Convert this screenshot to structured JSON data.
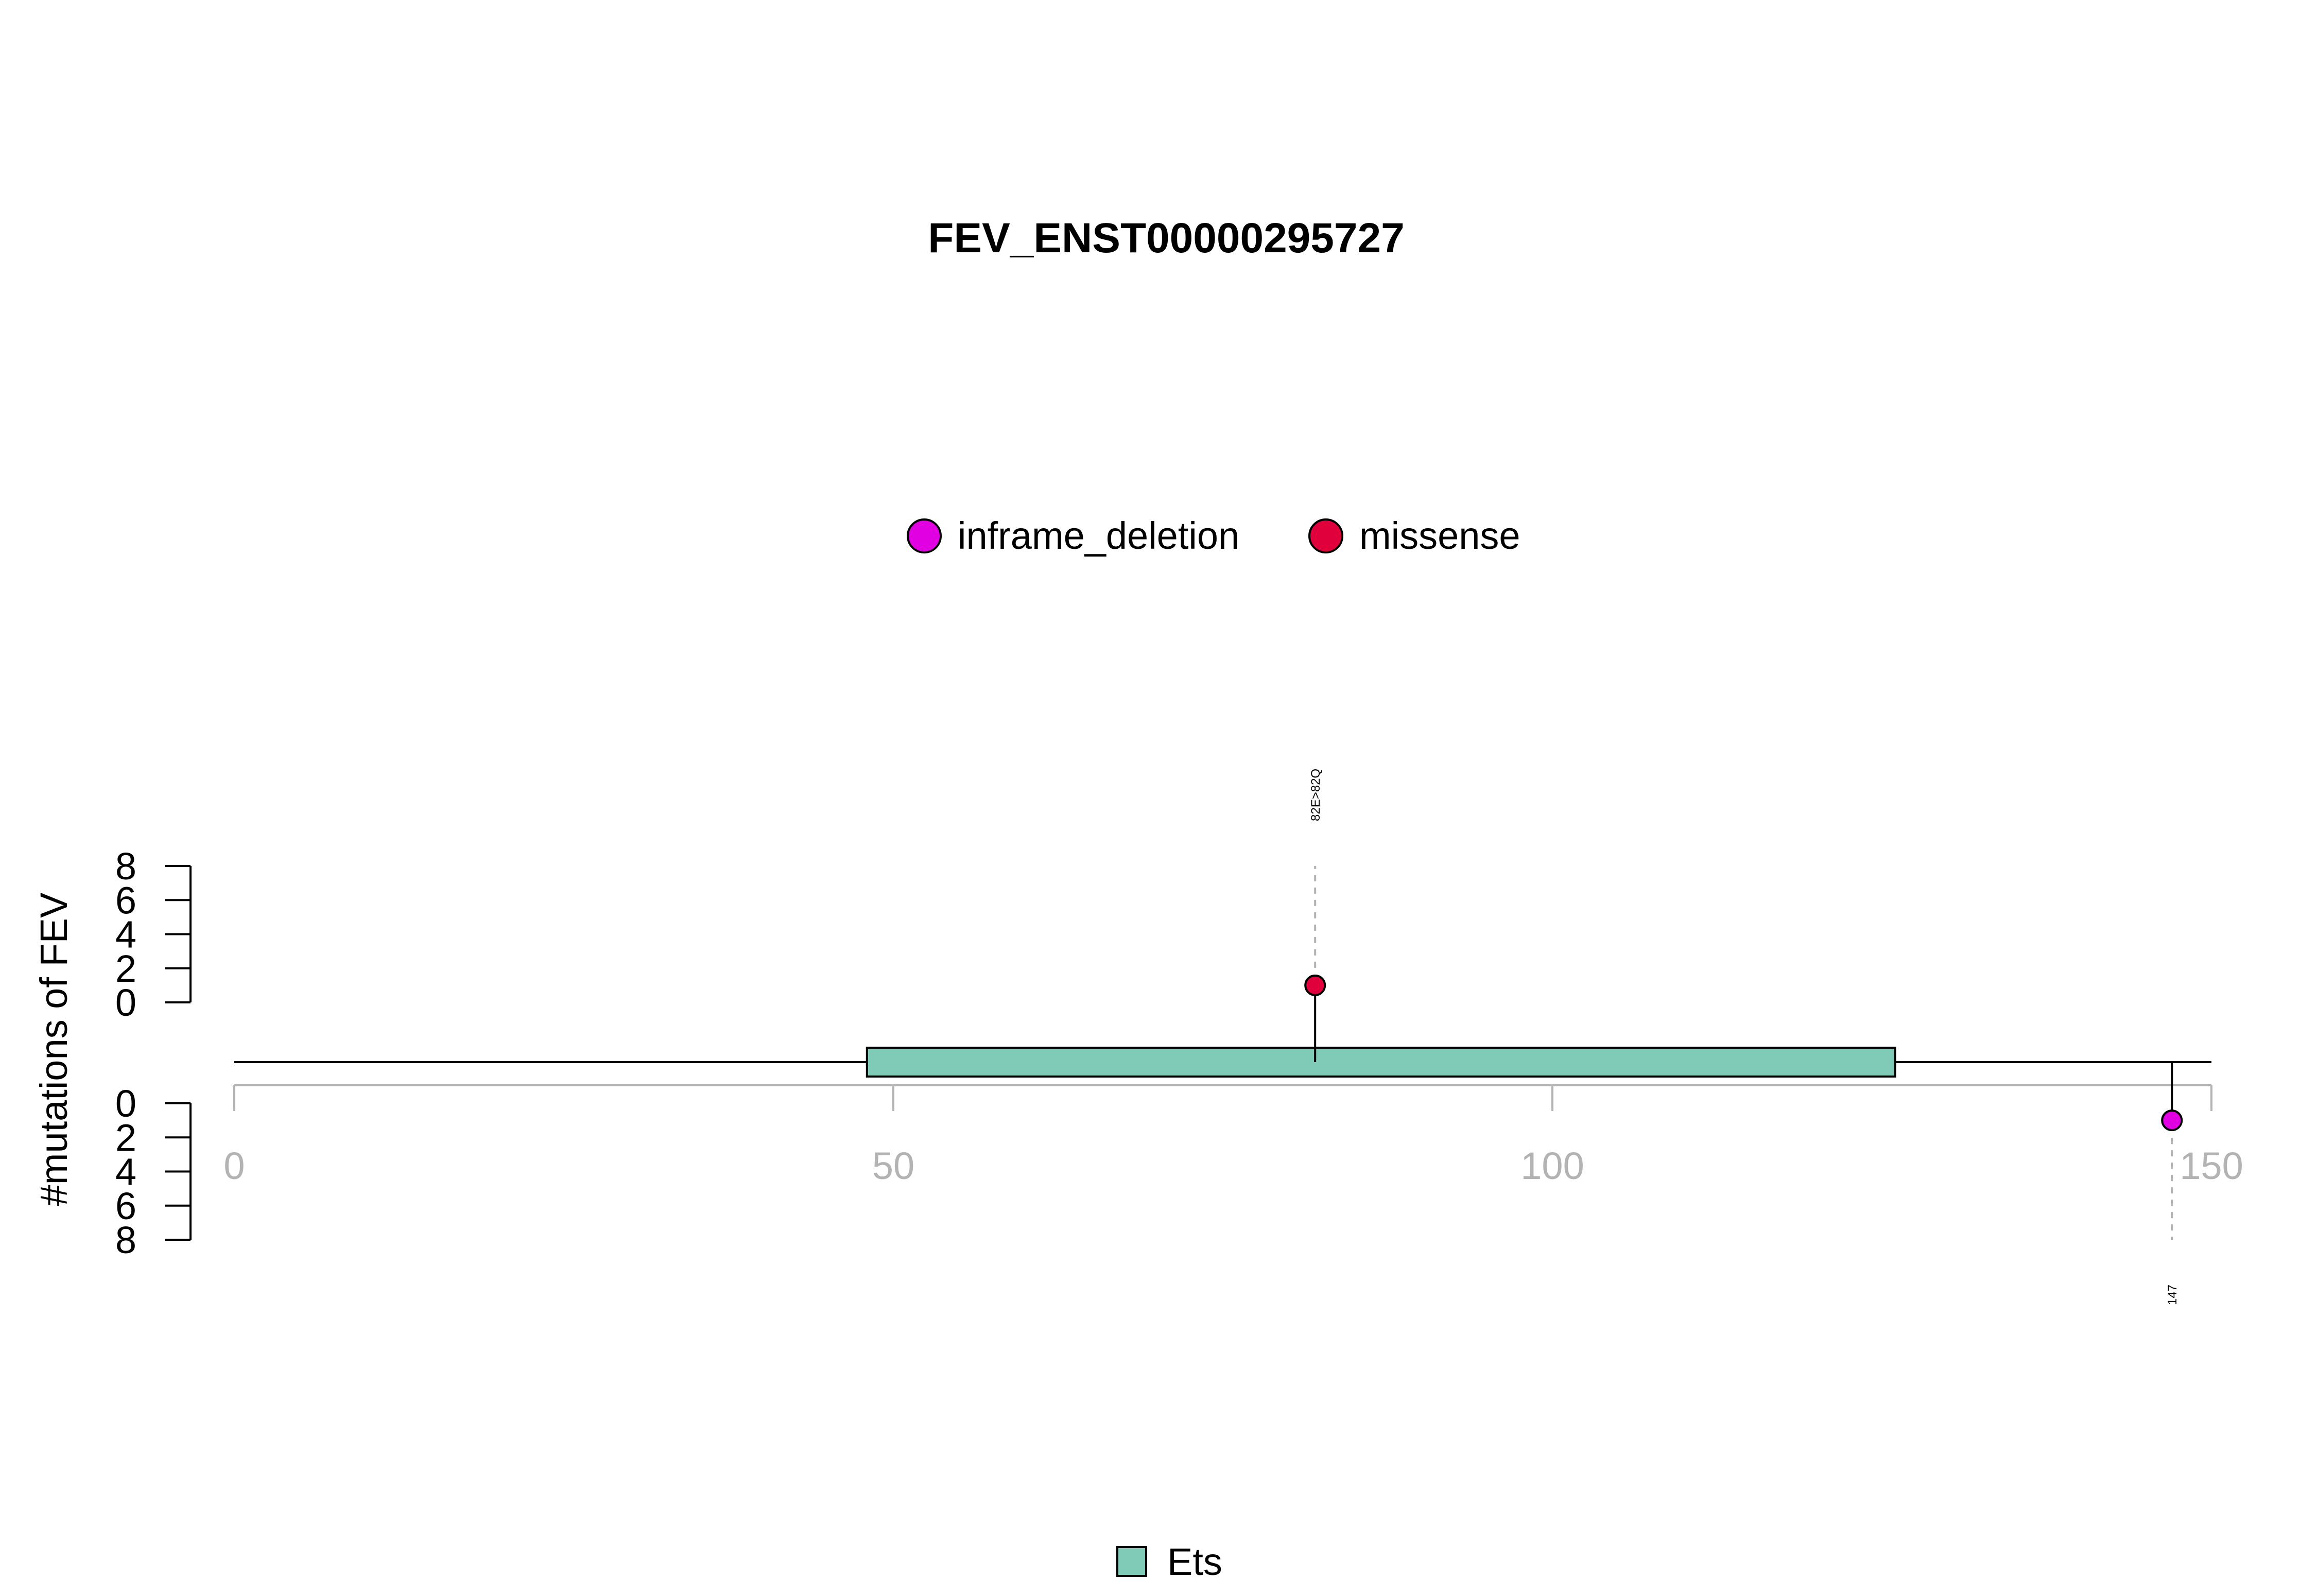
{
  "chart_data": {
    "type": "lollipop",
    "title": "FEV_ENST00000295727",
    "ylabel": "#mutations of FEV",
    "xlim": [
      0,
      150
    ],
    "x_ticks": [
      0,
      50,
      100,
      150
    ],
    "ylim_top": [
      0,
      8
    ],
    "ylim_bottom": [
      0,
      8
    ],
    "y_ticks": [
      0,
      2,
      4,
      6,
      8
    ],
    "legend_top": [
      {
        "label": "inframe_deletion",
        "color": "#E100E1"
      },
      {
        "label": "missense",
        "color": "#E0003C"
      }
    ],
    "legend_bottom": [
      {
        "label": "Ets",
        "color": "#7FCBB8"
      }
    ],
    "domains": [
      {
        "name": "Ets",
        "start": 48,
        "end": 126,
        "color": "#7FCBB8"
      }
    ],
    "mutations": [
      {
        "position": 82,
        "count": 1,
        "label": "82E>82Q",
        "type": "missense",
        "side": "top",
        "color": "#E0003C"
      },
      {
        "position": 147,
        "count": 1,
        "label": "147",
        "type": "inframe_deletion",
        "side": "bottom",
        "color": "#E100E1"
      }
    ]
  }
}
